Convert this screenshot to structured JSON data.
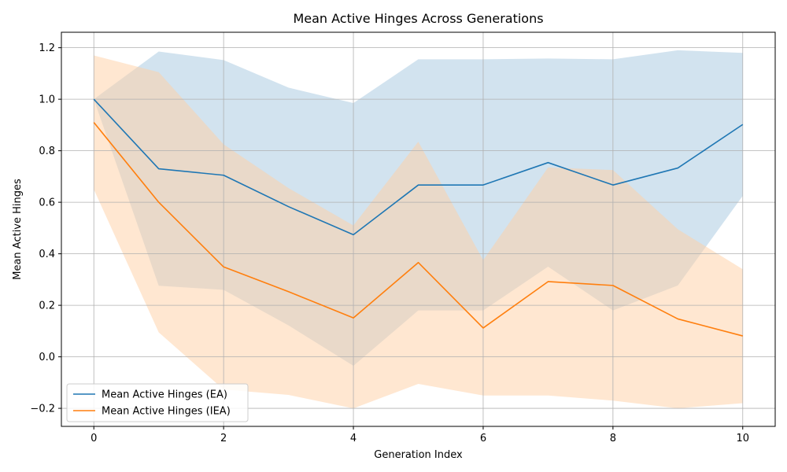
{
  "chart_data": {
    "type": "line",
    "title": "Mean Active Hinges  Across Generations",
    "xlabel": "Generation Index",
    "ylabel": "Mean Active Hinges",
    "xlim": [
      -0.5,
      10.5
    ],
    "ylim": [
      -0.27,
      1.26
    ],
    "xticks": [
      0,
      2,
      4,
      6,
      8,
      10
    ],
    "yticks": [
      -0.2,
      0.0,
      0.2,
      0.4,
      0.6,
      0.8,
      1.0,
      1.2
    ],
    "ytick_labels": [
      "−0.2",
      "0.0",
      "0.2",
      "0.4",
      "0.6",
      "0.8",
      "1.0",
      "1.2"
    ],
    "grid": true,
    "legend_position": "lower-left",
    "x": [
      0,
      1,
      2,
      3,
      4,
      5,
      6,
      7,
      8,
      9,
      10
    ],
    "series": [
      {
        "name": "Mean Active Hinges  (EA)",
        "color": "#1f77b4",
        "band_color": "#a6c8e0",
        "values": [
          1.0,
          0.73,
          0.705,
          0.583,
          0.474,
          0.667,
          0.667,
          0.754,
          0.667,
          0.733,
          0.902
        ],
        "upper": [
          1.0,
          1.185,
          1.152,
          1.045,
          0.985,
          1.155,
          1.155,
          1.158,
          1.155,
          1.19,
          1.18
        ],
        "lower": [
          1.0,
          0.276,
          0.26,
          0.122,
          -0.035,
          0.18,
          0.18,
          0.35,
          0.18,
          0.277,
          0.625
        ]
      },
      {
        "name": "Mean Active Hinges  (IEA)",
        "color": "#ff7f0e",
        "band_color": "#ffcfa3",
        "values": [
          0.91,
          0.6,
          0.349,
          0.253,
          0.151,
          0.366,
          0.112,
          0.292,
          0.277,
          0.147,
          0.081
        ],
        "upper": [
          1.17,
          1.105,
          0.825,
          0.655,
          0.51,
          0.835,
          0.375,
          0.735,
          0.725,
          0.495,
          0.34
        ],
        "lower": [
          0.65,
          0.095,
          -0.127,
          -0.148,
          -0.2,
          -0.105,
          -0.15,
          -0.15,
          -0.17,
          -0.2,
          -0.18
        ]
      }
    ]
  }
}
